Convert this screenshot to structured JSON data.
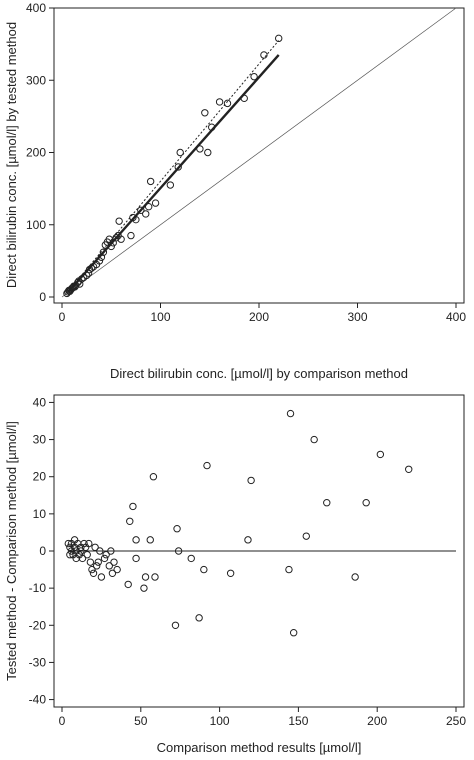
{
  "chart_data": [
    {
      "type": "scatter",
      "title": "",
      "xlabel": "Direct bilirubin conc. [µmol/l] by comparison method",
      "ylabel": "Direct bilirubin conc. [µmol/l] by tested method",
      "xlim": [
        0,
        400
      ],
      "ylim": [
        0,
        400
      ],
      "xticks": [
        0,
        100,
        200,
        300,
        400
      ],
      "yticks": [
        0,
        100,
        200,
        300,
        400
      ],
      "grid": false,
      "series": [
        {
          "type": "scatter",
          "points": [
            [
              5,
              5
            ],
            [
              6,
              7
            ],
            [
              7,
              9
            ],
            [
              8,
              8
            ],
            [
              9,
              10
            ],
            [
              10,
              12
            ],
            [
              11,
              13
            ],
            [
              12,
              15
            ],
            [
              13,
              14
            ],
            [
              14,
              16
            ],
            [
              16,
              20
            ],
            [
              17,
              22
            ],
            [
              18,
              18
            ],
            [
              20,
              25
            ],
            [
              22,
              27
            ],
            [
              25,
              30
            ],
            [
              27,
              33
            ],
            [
              28,
              38
            ],
            [
              30,
              40
            ],
            [
              32,
              42
            ],
            [
              35,
              45
            ],
            [
              38,
              50
            ],
            [
              40,
              55
            ],
            [
              42,
              62
            ],
            [
              44,
              72
            ],
            [
              46,
              76
            ],
            [
              48,
              80
            ],
            [
              50,
              70
            ],
            [
              52,
              75
            ],
            [
              55,
              82
            ],
            [
              57,
              85
            ],
            [
              58,
              105
            ],
            [
              60,
              80
            ],
            [
              70,
              85
            ],
            [
              72,
              110
            ],
            [
              75,
              107
            ],
            [
              80,
              120
            ],
            [
              85,
              115
            ],
            [
              90,
              160
            ],
            [
              88,
              125
            ],
            [
              95,
              130
            ],
            [
              110,
              155
            ],
            [
              120,
              200
            ],
            [
              118,
              180
            ],
            [
              140,
              205
            ],
            [
              145,
              255
            ],
            [
              148,
              200
            ],
            [
              152,
              235
            ],
            [
              160,
              270
            ],
            [
              168,
              268
            ],
            [
              185,
              275
            ],
            [
              195,
              305
            ],
            [
              205,
              335
            ],
            [
              220,
              358
            ]
          ]
        },
        {
          "type": "line",
          "style": "thick",
          "points": [
            [
              5,
              5
            ],
            [
              220,
              335
            ]
          ]
        },
        {
          "type": "line",
          "style": "dotted",
          "points": [
            [
              5,
              6
            ],
            [
              220,
              355
            ]
          ]
        },
        {
          "type": "line",
          "style": "identity",
          "points": [
            [
              0,
              0
            ],
            [
              400,
              400
            ]
          ]
        }
      ]
    },
    {
      "type": "scatter",
      "title": "",
      "xlabel": "Comparison method results [µmol/l]",
      "ylabel": "Tested method - Comparison method [µmol/l]",
      "xlim": [
        0,
        250
      ],
      "ylim": [
        -42,
        42
      ],
      "xticks": [
        0,
        50,
        100,
        150,
        200,
        250
      ],
      "yticks": [
        -40,
        -30,
        -20,
        -10,
        0,
        10,
        20,
        30,
        40
      ],
      "grid": false,
      "series": [
        {
          "type": "scatter",
          "points": [
            [
              4,
              2
            ],
            [
              5,
              1
            ],
            [
              5,
              -1
            ],
            [
              6,
              0
            ],
            [
              6,
              2
            ],
            [
              7,
              -1
            ],
            [
              8,
              1
            ],
            [
              8,
              3
            ],
            [
              9,
              0
            ],
            [
              9,
              -2
            ],
            [
              10,
              2
            ],
            [
              11,
              -1
            ],
            [
              12,
              1
            ],
            [
              12,
              0
            ],
            [
              13,
              -2
            ],
            [
              14,
              2
            ],
            [
              15,
              1
            ],
            [
              16,
              -1
            ],
            [
              17,
              2
            ],
            [
              18,
              -3
            ],
            [
              19,
              -5
            ],
            [
              20,
              -6
            ],
            [
              21,
              1
            ],
            [
              22,
              -4
            ],
            [
              23,
              -3
            ],
            [
              24,
              0
            ],
            [
              25,
              -7
            ],
            [
              27,
              -2
            ],
            [
              28,
              -1
            ],
            [
              30,
              -4
            ],
            [
              31,
              0
            ],
            [
              32,
              -6
            ],
            [
              33,
              -3
            ],
            [
              35,
              -5
            ],
            [
              42,
              -9
            ],
            [
              43,
              8
            ],
            [
              45,
              12
            ],
            [
              47,
              3
            ],
            [
              47,
              -2
            ],
            [
              52,
              -10
            ],
            [
              53,
              -7
            ],
            [
              56,
              3
            ],
            [
              58,
              20
            ],
            [
              59,
              -7
            ],
            [
              72,
              -20
            ],
            [
              73,
              6
            ],
            [
              74,
              0
            ],
            [
              82,
              -2
            ],
            [
              87,
              -18
            ],
            [
              90,
              -5
            ],
            [
              92,
              23
            ],
            [
              107,
              -6
            ],
            [
              118,
              3
            ],
            [
              120,
              19
            ],
            [
              144,
              -5
            ],
            [
              145,
              37
            ],
            [
              147,
              -22
            ],
            [
              155,
              4
            ],
            [
              160,
              30
            ],
            [
              168,
              13
            ],
            [
              186,
              -7
            ],
            [
              193,
              13
            ],
            [
              202,
              26
            ],
            [
              220,
              22
            ]
          ]
        },
        {
          "type": "line",
          "style": "zero",
          "points": [
            [
              5,
              0
            ],
            [
              250,
              0
            ]
          ]
        }
      ]
    }
  ]
}
